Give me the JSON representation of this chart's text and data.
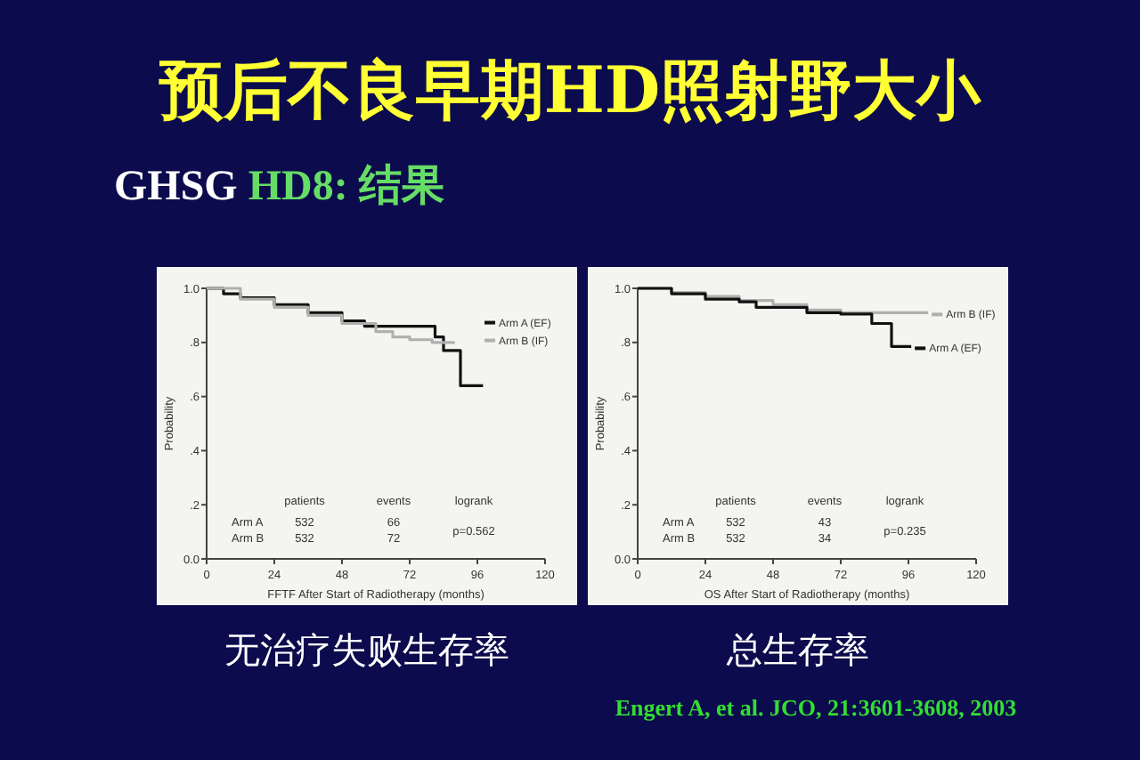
{
  "chart_data": [
    {
      "type": "step",
      "title": "预后不良早期HD照射野大小",
      "subtitle": "GHSG HD8: 结果",
      "xlabel": "FFTF After Start of Radiotherapy (months)",
      "ylabel": "Probability",
      "xlim": [
        0,
        120
      ],
      "ylim": [
        0,
        1
      ],
      "xticks": [
        0,
        24,
        48,
        72,
        96,
        120
      ],
      "yticks": [
        {
          "value": 0,
          "label": "0.0"
        },
        {
          "value": 0.2,
          "label": ".2"
        },
        {
          "value": 0.4,
          "label": ".4"
        },
        {
          "value": 0.6,
          "label": ".6"
        },
        {
          "value": 0.8,
          "label": ".8"
        },
        {
          "value": 1,
          "label": "1.0"
        }
      ],
      "legend": "top right",
      "grid": false,
      "annotations": [
        "patients",
        "events",
        "logrank",
        "Arm A",
        "532",
        "66",
        "Arm B",
        "532",
        "72",
        "p=0.562",
        "无治疗失败生存率"
      ],
      "series": [
        {
          "name": "Arm A (EF)",
          "color": "#111111",
          "x": [
            0,
            6,
            12,
            24,
            36,
            48,
            56,
            72,
            80,
            81,
            84,
            90,
            98
          ],
          "values": [
            1,
            0.98,
            0.965,
            0.94,
            0.91,
            0.88,
            0.86,
            0.86,
            0.86,
            0.82,
            0.77,
            0.64,
            0.64
          ]
        },
        {
          "name": "Arm B (IF)",
          "color": "#b0b0b0",
          "x": [
            0,
            12,
            24,
            36,
            48,
            60,
            66,
            72,
            80,
            88
          ],
          "values": [
            1,
            0.96,
            0.93,
            0.9,
            0.87,
            0.84,
            0.82,
            0.81,
            0.8,
            0.8
          ]
        }
      ]
    },
    {
      "type": "step",
      "xlabel": "OS After Start of Radiotherapy (months)",
      "ylabel": "Probability",
      "xlim": [
        0,
        120
      ],
      "ylim": [
        0,
        1
      ],
      "xticks": [
        0,
        24,
        48,
        72,
        96,
        120
      ],
      "yticks": [
        {
          "value": 0,
          "label": "0.0"
        },
        {
          "value": 0.2,
          "label": ".2"
        },
        {
          "value": 0.4,
          "label": ".4"
        },
        {
          "value": 0.6,
          "label": ".6"
        },
        {
          "value": 0.8,
          "label": ".8"
        },
        {
          "value": 1,
          "label": "1.0"
        }
      ],
      "legend": "right",
      "grid": false,
      "annotations": [
        "patients",
        "events",
        "logrank",
        "Arm A",
        "532",
        "43",
        "Arm B",
        "532",
        "34",
        "p=0.235",
        "总生存率",
        "Engert A, et al. JCO, 21:3601-3608, 2003"
      ],
      "series": [
        {
          "name": "Arm B (IF)",
          "color": "#b0b0b0",
          "x": [
            0,
            12,
            24,
            36,
            48,
            60,
            72,
            84,
            103
          ],
          "values": [
            1,
            0.985,
            0.97,
            0.955,
            0.94,
            0.92,
            0.91,
            0.91,
            0.91
          ]
        },
        {
          "name": "Arm A (EF)",
          "color": "#111111",
          "x": [
            0,
            12,
            24,
            36,
            42,
            48,
            60,
            72,
            83,
            90,
            97
          ],
          "values": [
            1,
            0.98,
            0.96,
            0.95,
            0.93,
            0.93,
            0.91,
            0.905,
            0.87,
            0.785,
            0.785
          ]
        }
      ]
    }
  ]
}
